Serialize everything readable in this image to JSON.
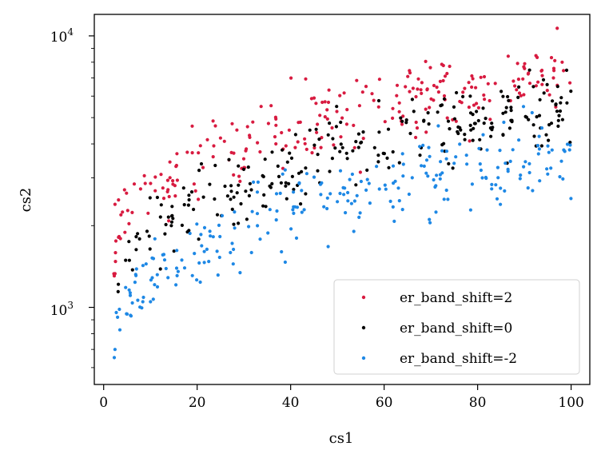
{
  "chart_data": {
    "type": "scatter",
    "xlabel": "cs1",
    "ylabel": "cs2",
    "xlim": [
      -2,
      104
    ],
    "ylim": [
      520,
      12000
    ],
    "yscale": "log",
    "xticks": [
      0,
      20,
      40,
      60,
      80,
      100
    ],
    "xtick_labels": [
      "0",
      "20",
      "40",
      "60",
      "80",
      "100"
    ],
    "yticks_major": [
      1000,
      10000
    ],
    "legend_placement": "lower-right",
    "grid": false,
    "point_description": "Each series: ~250 points spread over cs1 in [2, 100]; values below are sampled along the trend, with scatter estimated from the figure.",
    "series": [
      {
        "name": "er_band_shift=2",
        "color": "#d81b40",
        "x": [
          2,
          4,
          6,
          8,
          10,
          12,
          15,
          18,
          20,
          22,
          25,
          28,
          30,
          32,
          35,
          38,
          40,
          42,
          45,
          48,
          50,
          52,
          55,
          58,
          60,
          62,
          65,
          68,
          70,
          72,
          75,
          78,
          80,
          82,
          85,
          88,
          90,
          92,
          95,
          98,
          100
        ],
        "y": [
          1700,
          2100,
          2300,
          2600,
          2700,
          2900,
          3000,
          3200,
          3300,
          3500,
          3600,
          3800,
          4000,
          4200,
          4300,
          4500,
          4700,
          4700,
          4900,
          5000,
          5100,
          5200,
          5300,
          5400,
          5400,
          5500,
          5700,
          5800,
          5900,
          6000,
          6100,
          6200,
          6400,
          6500,
          6700,
          6800,
          7000,
          7100,
          7200,
          7400,
          7500
        ]
      },
      {
        "name": "er_band_shift=0",
        "color": "#000000",
        "x": [
          2,
          4,
          6,
          8,
          10,
          12,
          15,
          18,
          20,
          22,
          25,
          28,
          30,
          32,
          35,
          38,
          40,
          42,
          45,
          48,
          50,
          52,
          55,
          58,
          60,
          62,
          65,
          68,
          70,
          72,
          75,
          78,
          80,
          82,
          85,
          88,
          90,
          92,
          95,
          98,
          100
        ],
        "y": [
          1300,
          1500,
          1600,
          1800,
          1900,
          2000,
          2100,
          2300,
          2400,
          2500,
          2600,
          2800,
          2900,
          3000,
          3100,
          3200,
          3300,
          3400,
          3500,
          3600,
          3700,
          3700,
          3800,
          3900,
          3900,
          4000,
          4100,
          4200,
          4300,
          4400,
          4500,
          4600,
          4700,
          4700,
          4900,
          5000,
          5100,
          5200,
          5300,
          5400,
          5500
        ]
      },
      {
        "name": "er_band_shift=-2",
        "color": "#1e88e5",
        "x": [
          2,
          4,
          6,
          8,
          10,
          12,
          15,
          18,
          20,
          22,
          25,
          28,
          30,
          32,
          35,
          38,
          40,
          42,
          45,
          48,
          50,
          52,
          55,
          58,
          60,
          62,
          65,
          68,
          70,
          72,
          75,
          78,
          80,
          82,
          85,
          88,
          90,
          92,
          95,
          98,
          100
        ],
        "y": [
          700,
          950,
          1050,
          1150,
          1250,
          1350,
          1450,
          1550,
          1650,
          1750,
          1850,
          1950,
          2000,
          2100,
          2150,
          2250,
          2300,
          2400,
          2450,
          2500,
          2550,
          2600,
          2650,
          2750,
          2800,
          2850,
          2900,
          3000,
          3050,
          3100,
          3150,
          3250,
          3300,
          3350,
          3400,
          3450,
          3500,
          3550,
          3600,
          3650,
          3700
        ]
      }
    ]
  }
}
